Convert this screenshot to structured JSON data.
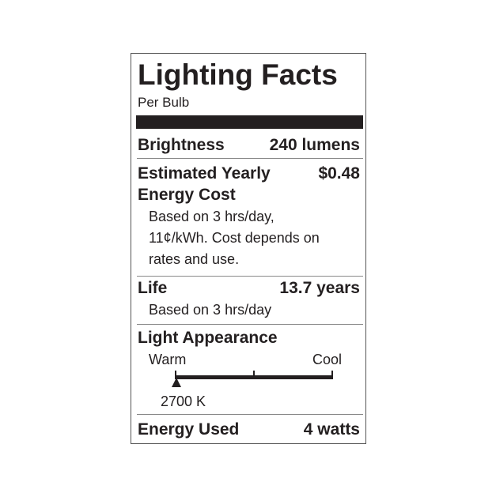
{
  "title": "Lighting Facts",
  "subtitle": "Per Bulb",
  "brightness": {
    "label": "Brightness",
    "value": "240 lumens"
  },
  "energy_cost": {
    "label_line1": "Estimated Yearly",
    "label_line2": "Energy Cost",
    "value": "$0.48",
    "note_lines": [
      "Based on 3 hrs/day,",
      "11¢/kWh. Cost depends on",
      "rates and use."
    ]
  },
  "life": {
    "label": "Life",
    "value": "13.7 years",
    "note": "Based on 3 hrs/day"
  },
  "appearance": {
    "label": "Light Appearance",
    "warm": "Warm",
    "cool": "Cool",
    "value": "2700 K",
    "marker_fraction": 0
  },
  "energy_used": {
    "label": "Energy Used",
    "value": "4 watts"
  }
}
